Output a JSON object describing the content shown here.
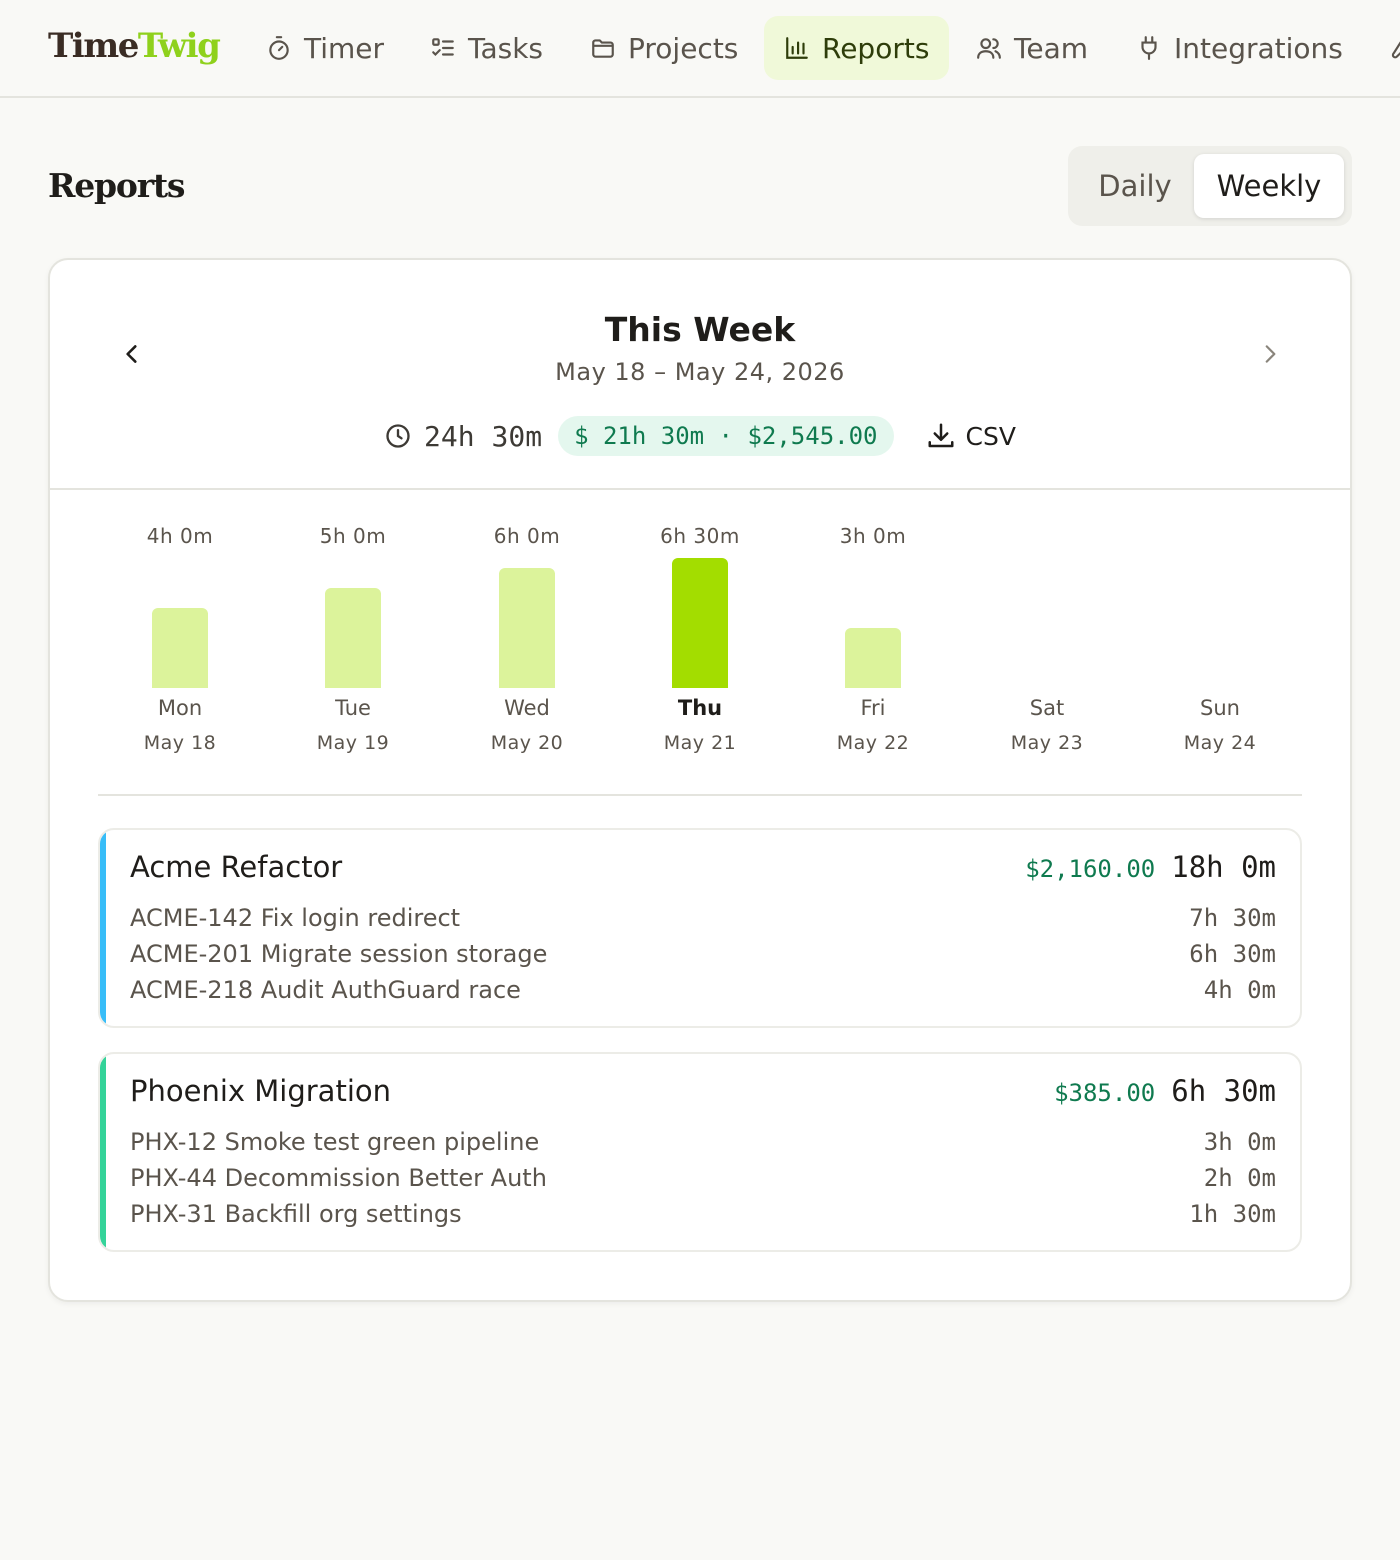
{
  "brand": {
    "part1": "Time",
    "part2": "Twig"
  },
  "nav": [
    {
      "label": "Timer",
      "icon": "stopwatch-icon"
    },
    {
      "label": "Tasks",
      "icon": "checklist-icon"
    },
    {
      "label": "Projects",
      "icon": "folder-icon"
    },
    {
      "label": "Reports",
      "icon": "bar-chart-icon",
      "active": true
    },
    {
      "label": "Team",
      "icon": "users-icon"
    },
    {
      "label": "Integrations",
      "icon": "plug-icon"
    }
  ],
  "page": {
    "title": "Reports"
  },
  "view_toggle": {
    "options": [
      "Daily",
      "Weekly"
    ],
    "selected": "Weekly"
  },
  "week": {
    "title": "This Week",
    "range": "May 18 – May 24, 2026",
    "total": "24h 30m",
    "billable": "$ 21h 30m · $2,545.00",
    "export_label": "CSV"
  },
  "chart_data": {
    "type": "bar",
    "categories": [
      "Mon",
      "Tue",
      "Wed",
      "Thu",
      "Fri",
      "Sat",
      "Sun"
    ],
    "dates": [
      "May 18",
      "May 19",
      "May 20",
      "May 21",
      "May 22",
      "May 23",
      "May 24"
    ],
    "values": [
      4,
      5,
      6,
      6.5,
      3,
      0,
      0
    ],
    "value_labels": [
      "4h 0m",
      "5h 0m",
      "6h 0m",
      "6h 30m",
      "3h 0m",
      "",
      ""
    ],
    "highlighted": "Thu",
    "unit": "hours",
    "colors": {
      "bar": "#dcf39b",
      "highlight": "#a3dd00"
    }
  },
  "projects": [
    {
      "name": "Acme Refactor",
      "amount": "$2,160.00",
      "hours": "18h 0m",
      "color": "#38bdf8",
      "tasks": [
        {
          "name": "ACME-142 Fix login redirect",
          "hours": "7h 30m"
        },
        {
          "name": "ACME-201 Migrate session storage",
          "hours": "6h 30m"
        },
        {
          "name": "ACME-218 Audit AuthGuard race",
          "hours": "4h 0m"
        }
      ]
    },
    {
      "name": "Phoenix Migration",
      "amount": "$385.00",
      "hours": "6h 30m",
      "color": "#34d399",
      "tasks": [
        {
          "name": "PHX-12 Smoke test green pipeline",
          "hours": "3h 0m"
        },
        {
          "name": "PHX-44 Decommission Better Auth",
          "hours": "2h 0m"
        },
        {
          "name": "PHX-31 Backfill org settings",
          "hours": "1h 30m"
        }
      ]
    }
  ]
}
